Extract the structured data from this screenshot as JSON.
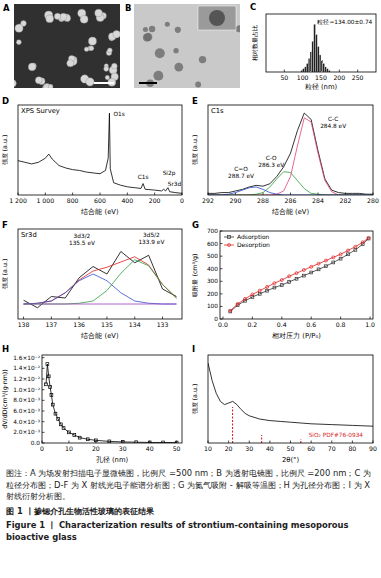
{
  "panel_labels": [
    "A",
    "B",
    "C",
    "D",
    "E",
    "F",
    "G",
    "H",
    "I"
  ],
  "chart_data": [
    {
      "type": "histogram",
      "xlabel": "粒径 (nm)",
      "ylabel": "相对数量占比",
      "bins": [
        95,
        100,
        105,
        110,
        115,
        120,
        125,
        130,
        135,
        140,
        145,
        150,
        155,
        160,
        165,
        170,
        175
      ],
      "counts": [
        0.01,
        0.02,
        0.03,
        0.05,
        0.08,
        0.12,
        0.18,
        0.28,
        0.22,
        0.15,
        0.1,
        0.07,
        0.05,
        0.03,
        0.02,
        0.01
      ],
      "color": "#222222",
      "xlim": [
        0,
        300
      ],
      "xticks": [
        50,
        100,
        150,
        200,
        250
      ],
      "ylim": [
        0,
        0.34
      ],
      "tick_labels": "x",
      "annotations": [
        {
          "text": "粒径=134.00±0.74",
          "x": 215,
          "y": 0.28
        }
      ]
    },
    {
      "type": "line",
      "title": "XPS Survey",
      "xlabel": "结合能 (eV)",
      "ylabel": "强度 (a.u.)",
      "x": [
        1200,
        1150,
        1100,
        1050,
        1000,
        975,
        950,
        900,
        850,
        800,
        750,
        700,
        650,
        600,
        560,
        540,
        531,
        525,
        500,
        450,
        400,
        350,
        300,
        285,
        270,
        200,
        150,
        134,
        120,
        103,
        90,
        50,
        0
      ],
      "series": [
        {
          "color": "#000000",
          "values": [
            0.42,
            0.4,
            0.38,
            0.4,
            0.45,
            0.5,
            0.44,
            0.36,
            0.33,
            0.31,
            0.3,
            0.28,
            0.27,
            0.26,
            0.3,
            0.45,
            1.0,
            0.32,
            0.15,
            0.12,
            0.1,
            0.09,
            0.08,
            0.14,
            0.07,
            0.06,
            0.05,
            0.07,
            0.05,
            0.09,
            0.04,
            0.03,
            0.02
          ]
        }
      ],
      "xlim": [
        1200,
        0
      ],
      "xticks": [
        {
          "value": 1200,
          "label": "1 200"
        },
        {
          "value": 1000,
          "label": "1 000"
        },
        800,
        600,
        400,
        200,
        0
      ],
      "ylim": [
        0,
        1.1
      ],
      "tick_labels": "x",
      "annotations": [
        {
          "text": "O1s",
          "x": 460,
          "y": 0.97
        },
        {
          "text": "C1s",
          "x": 285,
          "y": 0.19
        },
        {
          "text": "Si2p",
          "x": 95,
          "y": 0.24
        },
        {
          "text": "Sr3d",
          "x": 55,
          "y": 0.11
        }
      ]
    },
    {
      "type": "line",
      "title": "C1s",
      "xlabel": "结合能 (eV)",
      "ylabel": "强度 (a.u.)",
      "x": [
        292,
        291.5,
        291,
        290.5,
        290,
        289.5,
        289,
        288.5,
        288,
        287.5,
        287,
        286.5,
        286,
        285.5,
        285,
        284.5,
        284,
        283.5,
        283,
        282.5,
        282,
        281.5,
        281,
        280.5,
        280
      ],
      "series": [
        {
          "color": "#000000",
          "values": [
            0.02,
            0.02,
            0.03,
            0.03,
            0.05,
            0.07,
            0.1,
            0.12,
            0.11,
            0.14,
            0.23,
            0.35,
            0.52,
            0.8,
            1.02,
            0.94,
            0.55,
            0.2,
            0.06,
            0.03,
            0.02,
            0.02,
            0.02,
            0.01,
            0.01
          ]
        },
        {
          "color": "#e0407a",
          "values": [
            0,
            0,
            0,
            0,
            0,
            0,
            0,
            0,
            0,
            0,
            0.01,
            0.05,
            0.23,
            0.61,
            0.96,
            0.91,
            0.52,
            0.18,
            0.04,
            0,
            0,
            0,
            0,
            0,
            0
          ]
        },
        {
          "color": "#2e9e3a",
          "values": [
            0,
            0,
            0,
            0,
            0,
            0,
            0,
            0.01,
            0.03,
            0.1,
            0.2,
            0.29,
            0.28,
            0.18,
            0.08,
            0.02,
            0.01,
            0,
            0,
            0,
            0,
            0,
            0,
            0,
            0
          ]
        },
        {
          "color": "#2f4fd0",
          "values": [
            0,
            0,
            0,
            0.01,
            0.03,
            0.06,
            0.09,
            0.1,
            0.07,
            0.03,
            0.01,
            0,
            0,
            0,
            0,
            0,
            0,
            0,
            0,
            0,
            0,
            0,
            0,
            0,
            0
          ]
        }
      ],
      "xlim": [
        292,
        280
      ],
      "xticks": [
        292,
        290,
        288,
        286,
        284,
        282,
        280
      ],
      "ylim": [
        0,
        1.12
      ],
      "tick_labels": "x",
      "annotations": [
        {
          "text": [
            "C-C",
            "284.8 eV"
          ],
          "x": 282.9,
          "y": 0.92
        },
        {
          "text": [
            "C-O",
            "286.3 eV"
          ],
          "x": 287.4,
          "y": 0.44
        },
        {
          "text": [
            "C=O",
            "288.7 eV"
          ],
          "x": 289.6,
          "y": 0.3
        }
      ]
    },
    {
      "type": "line",
      "title": "Sr3d",
      "xlabel": "结合能 (eV)",
      "ylabel": "强度 (a.u.)",
      "x": [
        138,
        137.5,
        137,
        136.5,
        136,
        135.5,
        135,
        134.5,
        134,
        133.5,
        133,
        132.5
      ],
      "series": [
        {
          "color": "#000000",
          "values": [
            0.25,
            0.15,
            0.3,
            0.28,
            0.55,
            0.7,
            0.6,
            0.9,
            0.75,
            0.85,
            0.4,
            0.3
          ]
        },
        {
          "color": "#e02020",
          "values": [
            0.2,
            0.21,
            0.24,
            0.35,
            0.52,
            0.64,
            0.69,
            0.76,
            0.83,
            0.72,
            0.46,
            0.28
          ]
        },
        {
          "color": "#3050d0",
          "values": [
            0.2,
            0.21,
            0.24,
            0.35,
            0.51,
            0.6,
            0.51,
            0.35,
            0.24,
            0.21,
            0.2,
            0.2
          ]
        },
        {
          "color": "#30a040",
          "values": [
            0.2,
            0.2,
            0.2,
            0.2,
            0.21,
            0.24,
            0.38,
            0.61,
            0.79,
            0.71,
            0.46,
            0.28
          ]
        },
        {
          "color": "#a040c0",
          "values": [
            0.2,
            0.2,
            0.2,
            0.2,
            0.2,
            0.2,
            0.2,
            0.2,
            0.2,
            0.2,
            0.2,
            0.2
          ]
        }
      ],
      "xlim": [
        138.2,
        132.3
      ],
      "xticks": [
        138,
        137,
        136,
        135,
        134,
        133
      ],
      "ylim": [
        0,
        1.2
      ],
      "tick_labels": "x",
      "annotations": [
        {
          "text": [
            "3d3/2",
            "135.5 eV"
          ],
          "x": 135.9,
          "y": 1.08
        },
        {
          "text": [
            "3d5/2",
            "133.9 eV"
          ],
          "x": 133.4,
          "y": 1.1
        }
      ]
    },
    {
      "type": "line",
      "xlabel": "相对压力 (P/P₀)",
      "ylabel": "吸附量 (cm³/g)",
      "x": [
        0.05,
        0.1,
        0.15,
        0.2,
        0.25,
        0.3,
        0.35,
        0.4,
        0.45,
        0.5,
        0.55,
        0.6,
        0.65,
        0.7,
        0.75,
        0.8,
        0.85,
        0.9,
        0.95,
        0.99
      ],
      "series": [
        {
          "name": "Adsorption",
          "color": "#333333",
          "marker": "square",
          "values": [
            60,
            110,
            145,
            175,
            200,
            225,
            250,
            270,
            295,
            320,
            345,
            370,
            395,
            420,
            450,
            480,
            515,
            550,
            595,
            640
          ]
        },
        {
          "name": "Desorption",
          "color": "#e02020",
          "marker": "circle",
          "values": [
            65,
            120,
            160,
            195,
            225,
            255,
            285,
            310,
            340,
            365,
            390,
            415,
            440,
            465,
            490,
            515,
            545,
            575,
            610,
            645
          ]
        }
      ],
      "xlim": [
        -0.02,
        1.02
      ],
      "xticks": [
        {
          "value": 0,
          "label": "0.0"
        },
        0.2,
        0.4,
        0.6,
        0.8,
        {
          "value": 1,
          "label": "1.0"
        }
      ],
      "ylim": [
        0,
        700
      ],
      "yticks": [
        0,
        100,
        200,
        300,
        400,
        500,
        600,
        700
      ],
      "legend": "upper left"
    },
    {
      "type": "line",
      "xlabel": "孔径 (nm)",
      "ylabel": "dV/dD(cm³/(g·nm))",
      "x": [
        1.5,
        2,
        2.5,
        3,
        3.5,
        4,
        5,
        6,
        7,
        8,
        10,
        12,
        14,
        17,
        20,
        25,
        30,
        35,
        40,
        45,
        50
      ],
      "series": [
        {
          "color": "#000000",
          "marker": "square",
          "values": [
            0.011,
            0.0148,
            0.0125,
            0.0105,
            0.009,
            0.0072,
            0.0055,
            0.0045,
            0.0035,
            0.0028,
            0.002,
            0.0015,
            0.001,
            0.0007,
            0.0005,
            0.0003,
            0.0002,
            0.00015,
            0.0001,
            0.0001,
            8e-05
          ]
        }
      ],
      "xlim": [
        0,
        52
      ],
      "xticks": [
        0,
        10,
        20,
        30,
        40,
        50
      ],
      "ylim": [
        0,
        0.0165
      ],
      "yticks": [
        {
          "value": 0,
          "label": "0.0"
        },
        {
          "value": 0.002,
          "label": "2.0×10⁻³"
        },
        {
          "value": 0.004,
          "label": "4.0×10⁻³"
        },
        {
          "value": 0.006,
          "label": "6.0×10⁻³"
        },
        {
          "value": 0.008,
          "label": "8.0×10⁻³"
        },
        {
          "value": 0.01,
          "label": "1.0×10⁻²"
        },
        {
          "value": 0.012,
          "label": "1.2×10⁻²"
        },
        {
          "value": 0.014,
          "label": "1.4×10⁻²"
        },
        {
          "value": 0.016,
          "label": "1.6×10⁻²"
        }
      ]
    },
    {
      "type": "line",
      "xlabel": "2θ(°)",
      "ylabel": "强度 (a.u.)",
      "x": [
        10,
        12,
        14,
        16,
        18,
        20,
        22,
        24,
        26,
        28,
        30,
        35,
        40,
        45,
        50,
        55,
        60,
        70,
        80,
        90
      ],
      "series": [
        {
          "color": "#000000",
          "values": [
            1.0,
            0.78,
            0.62,
            0.52,
            0.48,
            0.5,
            0.52,
            0.48,
            0.42,
            0.37,
            0.34,
            0.3,
            0.28,
            0.27,
            0.26,
            0.25,
            0.24,
            0.23,
            0.22,
            0.21
          ]
        },
        {
          "type": "bar",
          "color": "#d62728",
          "line_style": "dashed",
          "x": [
            21.9,
            36.0,
            55.0
          ],
          "values": [
            0.45,
            0.1,
            0.05
          ]
        }
      ],
      "xlim": [
        10,
        90
      ],
      "xticks": [
        10,
        20,
        30,
        40,
        50,
        60,
        70,
        80,
        90
      ],
      "ylim": [
        0,
        1.1
      ],
      "tick_labels": "x",
      "annotations": [
        {
          "text": "SiO₂ PDF#76-0934",
          "x": 72,
          "y": 0.07,
          "color": "#d62728"
        }
      ]
    }
  ],
  "caption": {
    "note": "图注：A 为场发射扫描电子显微镜图，比例尺 =500 nm；B 为透射电镜图，比例尺 =200 nm；C 为粒径分布图；D-F 为 X 射线光电子能谱分析图；G 为氮气吸附 - 解吸等温图；H 为孔径分布图；I 为 X 射线衍射分析图。",
    "title_cn": "图 1 丨掺锶介孔生物活性玻璃的表征结果",
    "title_en": "Figure 1 丨 Characterization results of strontium-containing mesoporous bioactive glass"
  }
}
